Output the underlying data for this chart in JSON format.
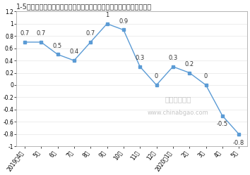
{
  "title": "1-5月泵、阀门、压缩机及类似机械制造工业生产者出厂价格指数同比涨",
  "x_labels": [
    "2019年4月",
    "5月",
    "6月",
    "7月",
    "8月",
    "9月",
    "10月",
    "11月",
    "12月",
    "2020年1月",
    "2月",
    "3月",
    "4月",
    "5月"
  ],
  "y_values": [
    0.7,
    0.7,
    0.5,
    0.4,
    0.7,
    1.0,
    0.9,
    0.3,
    0.0,
    0.3,
    0.2,
    0.0,
    -0.5,
    -0.8
  ],
  "ylim": [
    -1.0,
    1.2
  ],
  "yticks": [
    -1.0,
    -0.8,
    -0.6,
    -0.4,
    -0.2,
    0.0,
    0.2,
    0.4,
    0.6,
    0.8,
    1.0,
    1.2
  ],
  "line_color": "#5b9bd5",
  "marker_color": "#5b9bd5",
  "bg_color": "#ffffff",
  "plot_bg_color": "#ffffff",
  "border_color": "#aaaaaa",
  "title_fontsize": 7.0,
  "label_fontsize": 5.5,
  "annotation_fontsize": 6.0,
  "watermark_line1": "中国报告大厅",
  "watermark_line2": "www.chinabgao.com"
}
